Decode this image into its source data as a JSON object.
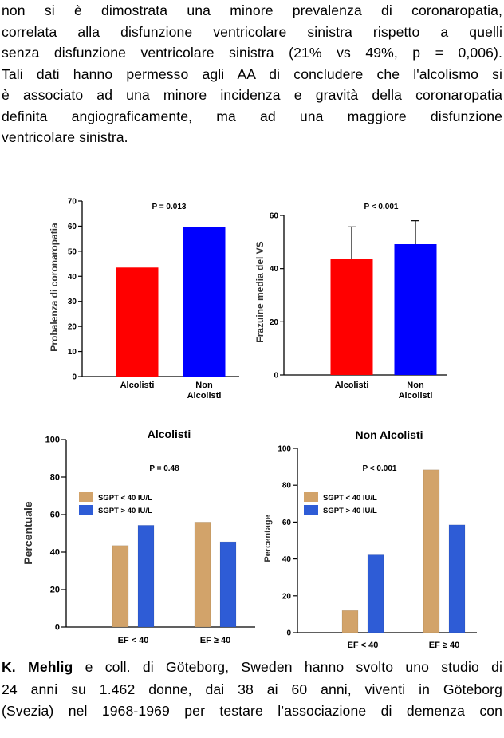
{
  "paragraph_top": {
    "lines": [
      "non si è dimostrata una minore prevalenza di coronaropatia,",
      "correlata alla disfunzione ventricolare sinistra rispetto a quelli",
      "senza disfunzione ventricolare sinistra (21% vs 49%, p = 0,006).",
      "Tali dati hanno permesso agli AA di concludere che l'alcolismo si",
      "è associato ad una minore incidenza e gravità della coronaropatia",
      "definita angiograficamente, ma ad una maggiore disfunzione",
      "ventricolare sinistra."
    ]
  },
  "paragraph_bottom": {
    "author": "K. Mehlig",
    "line1_rest": " e coll. di Göteborg, Sweden hanno svolto uno studio di",
    "line2": "24 anni su 1.462 donne, dai 38 ai 60 anni, viventi in Göteborg",
    "line3": "(Svezia) nel 1968-1969 per testare l’associazione di demenza con"
  },
  "chart_data": [
    {
      "type": "bar",
      "title": "P = 0.013",
      "ylabel": "Probalenza di coronaropatia",
      "categories": [
        "Alcolisti",
        "Non\nAlcolisti"
      ],
      "values": [
        43.5,
        59.7
      ],
      "colors": [
        "#ff0000",
        "#0000ff"
      ],
      "ylim": [
        0,
        70
      ],
      "yticks": [
        0,
        10,
        20,
        30,
        40,
        50,
        60,
        70
      ]
    },
    {
      "type": "bar",
      "title": "P < 0.001",
      "ylabel": "Frazuine media del VS",
      "categories": [
        "Alcolisti",
        "Non\nAlcolisti"
      ],
      "values": [
        43.5,
        49.2
      ],
      "error_upper": [
        55.7,
        58.0
      ],
      "colors": [
        "#ff0000",
        "#0000ff"
      ],
      "ylim": [
        0,
        60
      ],
      "yticks": [
        0,
        20,
        40,
        60
      ]
    },
    {
      "type": "bar",
      "title": "Alcolisti",
      "annotation": "P = 0.48",
      "ylabel": "Percentuale",
      "categories": [
        "EF < 40",
        "EF ≥ 40"
      ],
      "series": [
        {
          "name": "SGPT < 40 IU/L",
          "values": [
            43.5,
            56.0
          ],
          "color": "#d2a36a"
        },
        {
          "name": "SGPT > 40 IU/L",
          "values": [
            54.3,
            45.5
          ],
          "color": "#2e5cd6"
        }
      ],
      "ylim": [
        0,
        100
      ],
      "yticks": [
        0,
        20,
        40,
        60,
        80,
        100
      ]
    },
    {
      "type": "bar",
      "title": "Non     Alcolisti",
      "annotation": "P < 0.001",
      "ylabel": "Percentage",
      "categories": [
        "EF < 40",
        "EF ≥ 40"
      ],
      "series": [
        {
          "name": "SGPT < 40 IU/L",
          "values": [
            12.0,
            88.4
          ],
          "color": "#d2a36a"
        },
        {
          "name": "SGPT > 40 IU/L",
          "values": [
            42.2,
            58.5
          ],
          "color": "#2e5cd6"
        }
      ],
      "ylim": [
        0,
        100
      ],
      "yticks": [
        0,
        20,
        40,
        60,
        80,
        100
      ]
    }
  ]
}
